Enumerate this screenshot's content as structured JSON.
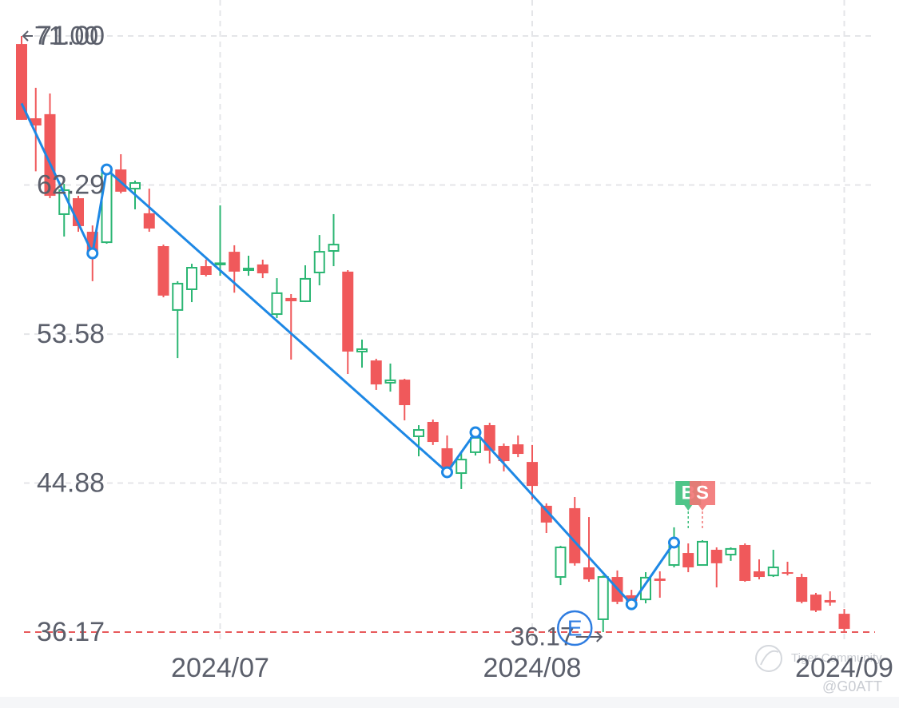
{
  "chart_data": {
    "type": "candlestick",
    "categories": [
      null,
      null,
      null,
      null,
      null,
      null,
      null,
      null,
      null,
      null,
      null,
      null,
      null,
      null,
      "2024/07",
      null,
      null,
      null,
      null,
      null,
      null,
      null,
      null,
      null,
      null,
      null,
      null,
      null,
      null,
      null,
      null,
      null,
      null,
      null,
      null,
      null,
      "2024/08",
      null,
      null,
      null,
      null,
      null,
      null,
      null,
      null,
      null,
      null,
      null,
      null,
      null,
      null,
      null,
      null,
      null,
      null,
      null,
      null,
      null,
      "2024/09"
    ],
    "open": [
      70.53,
      66.19,
      66.43,
      60.59,
      61.52,
      59.56,
      58.95,
      63.2,
      62.08,
      60.64,
      58.72,
      54.99,
      56.2,
      57.55,
      57.67,
      58.39,
      57.32,
      57.65,
      54.75,
      55.69,
      55.5,
      57.18,
      58.44,
      57.23,
      52.56,
      52.04,
      50.74,
      50.92,
      47.61,
      48.45,
      46.91,
      45.46,
      46.68,
      48.26,
      47.05,
      47.14,
      46.11,
      43.55,
      39.39,
      43.41,
      39.95,
      36.92,
      39.39,
      38.32,
      38.08,
      39.3,
      40.09,
      40.79,
      40.09,
      40.98,
      40.7,
      41.26,
      39.72,
      39.48,
      39.67,
      39.39,
      38.36,
      38.04,
      37.24
    ],
    "high": [
      71.0,
      67.97,
      67.64,
      62.36,
      61.66,
      59.93,
      63.53,
      64.09,
      62.55,
      62.08,
      58.81,
      56.67,
      57.69,
      57.93,
      61.1,
      58.77,
      58.16,
      57.93,
      56.85,
      55.92,
      57.6,
      59.37,
      60.59,
      57.32,
      53.26,
      52.14,
      51.86,
      50.97,
      48.26,
      48.59,
      47.66,
      46.72,
      47.89,
      48.4,
      47.19,
      47.66,
      47.1,
      43.69,
      41.21,
      44.06,
      42.89,
      39.48,
      39.77,
      38.64,
      39.67,
      39.72,
      42.29,
      41.35,
      41.54,
      41.12,
      41.12,
      41.35,
      40.42,
      40.98,
      40.28,
      39.58,
      38.46,
      38.55,
      37.52
    ],
    "low": [
      66.1,
      63.09,
      61.52,
      59.28,
      59.56,
      56.67,
      58.86,
      61.8,
      60.87,
      59.56,
      55.73,
      52.18,
      55.45,
      56.95,
      56.99,
      56.0,
      56.99,
      56.85,
      54.52,
      52.09,
      55.45,
      56.43,
      57.55,
      51.25,
      51.62,
      50.32,
      50.22,
      48.54,
      46.44,
      47.1,
      45.46,
      44.53,
      46.49,
      46.02,
      45.56,
      46.39,
      43.92,
      41.96,
      38.92,
      40.05,
      39.11,
      36.17,
      37.8,
      37.66,
      37.85,
      38.18,
      39.95,
      39.67,
      40.05,
      38.78,
      40.33,
      39.11,
      39.25,
      39.39,
      39.48,
      37.85,
      37.34,
      37.71,
      36.2
    ],
    "close": [
      66.1,
      65.77,
      61.66,
      61.99,
      59.89,
      58.25,
      63.2,
      61.9,
      62.41,
      59.75,
      55.83,
      56.53,
      57.46,
      57.04,
      57.72,
      57.23,
      57.41,
      57.13,
      55.97,
      55.5,
      56.81,
      58.39,
      58.81,
      52.56,
      52.7,
      50.64,
      50.88,
      49.43,
      47.98,
      47.28,
      45.79,
      46.25,
      47.52,
      46.77,
      46.16,
      46.58,
      44.71,
      42.57,
      41.12,
      40.19,
      39.25,
      39.39,
      37.94,
      37.99,
      39.35,
      39.16,
      41.21,
      39.95,
      41.45,
      40.19,
      41.03,
      39.16,
      39.39,
      39.95,
      39.58,
      37.94,
      37.43,
      37.9,
      36.36
    ],
    "up_color": "#2bb673",
    "down_color": "#f0595b",
    "ylim": [
      36.17,
      71.0
    ],
    "yticks": [
      {
        "value": 36.17,
        "label": "36.17"
      },
      {
        "value": 44.88,
        "label": "44.88"
      },
      {
        "value": 53.58,
        "label": "53.58"
      },
      {
        "value": 62.29,
        "label": "62.29"
      },
      {
        "value": 71.0,
        "label": "71.00"
      }
    ],
    "grid": true,
    "price_line_color": "#e8595b",
    "zigzag": {
      "x": [
        0,
        5,
        6,
        30,
        32,
        43,
        46
      ],
      "values": [
        67.06,
        58.3,
        63.2,
        45.51,
        47.84,
        37.8,
        41.4
      ],
      "color": "#1e88e5"
    },
    "high_label": {
      "index": 0,
      "value": 71.0,
      "label": "71.00"
    },
    "low_label": {
      "index": 41,
      "value": 36.17,
      "label": "36.17"
    },
    "event": {
      "index": 39,
      "label": "E"
    },
    "flags": [
      {
        "index": 47,
        "label": "B",
        "color": "#3cbf7c"
      },
      {
        "index": 48,
        "label": "S",
        "color": "#f27474"
      }
    ],
    "watermark": "Tiger Community",
    "credit": "@G0ATT"
  }
}
